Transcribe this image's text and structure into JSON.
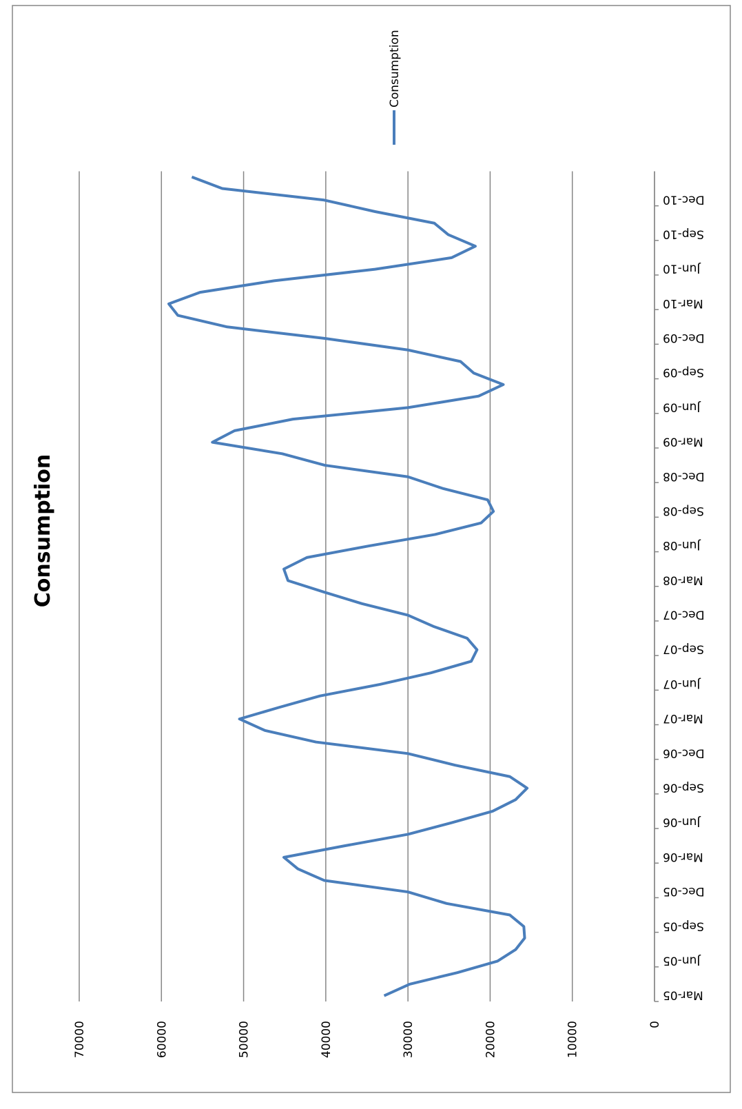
{
  "chart_data": {
    "type": "line",
    "title": "Consumption",
    "categories": [
      "Mar-05",
      null,
      null,
      "Jun-05",
      null,
      null,
      "Sep-05",
      null,
      null,
      "Dec-05",
      null,
      null,
      "Mar-06",
      null,
      null,
      "Jun-06",
      null,
      null,
      "Sep-06",
      null,
      null,
      "Dec-06",
      null,
      null,
      "Mar-07",
      null,
      null,
      "Jun-07",
      null,
      null,
      "Sep-07",
      null,
      null,
      "Dec-07",
      null,
      null,
      "Mar-08",
      null,
      null,
      "Jun-08",
      null,
      null,
      "Sep-08",
      null,
      null,
      "Dec-08",
      null,
      null,
      "Mar-09",
      null,
      null,
      "Jun-09",
      null,
      null,
      "Sep-09",
      null,
      null,
      "Dec-09",
      null,
      null,
      "Mar-10",
      null,
      null,
      "Jun-10",
      null,
      null,
      "Sep-10",
      null,
      null,
      "Dec-10",
      null,
      null
    ],
    "series": [
      {
        "name": "Consumption",
        "color": "#4a7ebb",
        "values": [
          32900,
          29800,
          24000,
          19100,
          16900,
          15800,
          15900,
          17600,
          25300,
          30000,
          40200,
          43400,
          45100,
          37700,
          30000,
          24700,
          19700,
          16900,
          15500,
          17600,
          24300,
          30000,
          41200,
          47400,
          50500,
          45700,
          40700,
          33400,
          27200,
          22300,
          21600,
          22800,
          26800,
          30000,
          35600,
          40200,
          44600,
          45100,
          42300,
          34800,
          26700,
          21100,
          19600,
          20300,
          25800,
          30000,
          40100,
          45300,
          53800,
          51100,
          44000,
          30000,
          21400,
          18400,
          22000,
          23600,
          30000,
          40100,
          52000,
          58000,
          59100,
          55300,
          46300,
          34000,
          24700,
          21800,
          25100,
          26800,
          34000,
          40200,
          52600,
          56300
        ]
      }
    ],
    "ylim": [
      0,
      70000
    ],
    "yticks": [
      0,
      10000,
      20000,
      30000,
      40000,
      50000,
      60000,
      70000
    ],
    "grid": true,
    "legend": "right",
    "rotated": true
  }
}
